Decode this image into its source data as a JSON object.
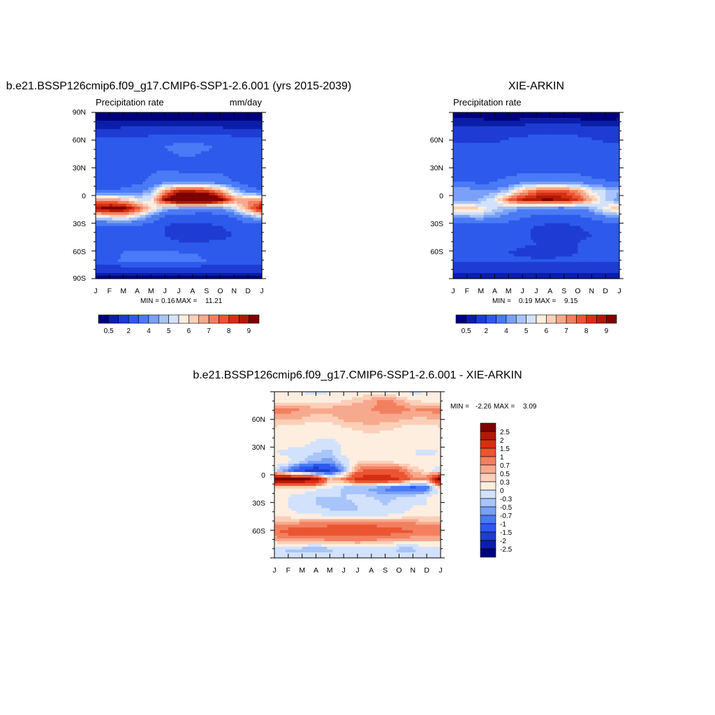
{
  "chart_data": [
    {
      "type": "heatmap",
      "title": "b.e21.BSSP126cmip6.f09_g17.CMIP6-SSP1-2.6.001 (yrs 2015-2039)",
      "left_label": "Precipitation rate",
      "right_label": "mm/day",
      "x_ticks": [
        "J",
        "F",
        "M",
        "A",
        "M",
        "J",
        "J",
        "A",
        "S",
        "O",
        "N",
        "D",
        "J"
      ],
      "y_ticks": [
        "90N",
        "60N",
        "30N",
        "0",
        "30S",
        "60S",
        "90S"
      ],
      "stats": {
        "min_label": "MIN =",
        "min": "0.16",
        "max_label": "MAX =",
        "max": "11.21"
      },
      "colorbar_labels": [
        "0.5",
        "2",
        "4",
        "5",
        "6",
        "7",
        "8",
        "9"
      ],
      "colors": [
        "#00007f",
        "#0a1ea8",
        "#1e3cd2",
        "#2d5aeb",
        "#4a7af5",
        "#7aa0f7",
        "#a8c4fa",
        "#d2e2fc",
        "#fdeee0",
        "#fccfb8",
        "#f7a98e",
        "#f2805f",
        "#eb5532",
        "#d62f14",
        "#b01a06",
        "#7f0000"
      ],
      "field": [
        [
          0.3,
          0.3,
          0.3,
          0.3,
          0.3,
          0.3,
          0.3,
          0.3,
          0.3,
          0.3,
          0.3,
          0.3,
          0.3
        ],
        [
          0.5,
          0.5,
          0.5,
          0.5,
          0.5,
          0.5,
          0.5,
          0.5,
          0.5,
          0.5,
          0.5,
          0.5,
          0.5
        ],
        [
          1.0,
          1.0,
          1.2,
          1.2,
          1.2,
          1.2,
          1.2,
          1.2,
          1.2,
          1.2,
          1.0,
          1.0,
          1.0
        ],
        [
          2.3,
          2.3,
          2.2,
          2.2,
          2.4,
          2.8,
          2.8,
          2.8,
          2.6,
          2.6,
          2.4,
          2.4,
          2.3
        ],
        [
          2.2,
          2.2,
          2.0,
          2.0,
          2.2,
          3.0,
          3.2,
          3.2,
          3.2,
          2.8,
          2.6,
          2.4,
          2.2
        ],
        [
          2.4,
          2.4,
          2.3,
          2.3,
          2.5,
          2.8,
          3.0,
          3.0,
          2.8,
          2.6,
          2.6,
          2.4,
          2.4
        ],
        [
          2.1,
          2.2,
          2.2,
          2.2,
          2.4,
          2.6,
          3.0,
          3.0,
          2.8,
          2.6,
          2.4,
          2.2,
          2.1
        ],
        [
          2.2,
          2.2,
          2.4,
          2.6,
          3.0,
          3.4,
          3.0,
          3.0,
          3.0,
          3.0,
          2.6,
          2.4,
          2.2
        ],
        [
          2.4,
          2.4,
          2.6,
          2.8,
          3.2,
          4.0,
          3.8,
          3.8,
          4.0,
          3.6,
          3.0,
          2.6,
          2.4
        ],
        [
          3.0,
          3.0,
          3.2,
          3.6,
          4.5,
          7.0,
          8.5,
          8.5,
          8.2,
          7.0,
          5.0,
          3.5,
          3.0
        ],
        [
          7.0,
          7.0,
          6.5,
          5.5,
          5.5,
          9.0,
          10.5,
          11.0,
          11.0,
          9.5,
          7.0,
          7.0,
          7.0
        ],
        [
          9.0,
          9.5,
          9.5,
          8.0,
          6.0,
          4.5,
          4.0,
          3.8,
          3.6,
          3.8,
          5.0,
          7.0,
          9.0
        ],
        [
          5.0,
          5.5,
          5.8,
          5.0,
          3.8,
          2.8,
          2.6,
          2.4,
          2.4,
          2.6,
          3.0,
          4.0,
          5.0
        ],
        [
          2.6,
          2.6,
          2.8,
          2.8,
          2.4,
          2.0,
          1.6,
          1.6,
          1.8,
          2.0,
          2.2,
          2.4,
          2.6
        ],
        [
          2.2,
          2.2,
          2.2,
          2.4,
          2.2,
          2.0,
          1.5,
          1.2,
          1.4,
          1.8,
          2.0,
          2.2,
          2.2
        ],
        [
          2.2,
          2.2,
          2.2,
          2.4,
          2.4,
          2.4,
          2.2,
          2.2,
          2.2,
          2.2,
          2.2,
          2.2,
          2.2
        ],
        [
          2.2,
          2.6,
          3.0,
          3.2,
          3.2,
          3.2,
          3.0,
          3.0,
          2.8,
          2.8,
          2.6,
          2.4,
          2.2
        ],
        [
          2.4,
          2.6,
          3.2,
          3.2,
          3.2,
          3.2,
          3.2,
          3.2,
          3.0,
          2.8,
          2.6,
          2.4,
          2.4
        ],
        [
          1.2,
          1.2,
          1.2,
          1.2,
          1.2,
          1.2,
          1.2,
          1.2,
          1.2,
          1.2,
          1.2,
          1.2,
          1.2
        ],
        [
          0.3,
          0.3,
          0.3,
          0.3,
          0.3,
          0.3,
          0.3,
          0.3,
          0.3,
          0.3,
          0.3,
          0.3,
          0.3
        ]
      ]
    },
    {
      "type": "heatmap",
      "title": "XIE-ARKIN",
      "left_label": "Precipitation rate",
      "right_label": "",
      "x_ticks": [
        "J",
        "F",
        "M",
        "A",
        "M",
        "J",
        "J",
        "A",
        "S",
        "O",
        "N",
        "D",
        "J"
      ],
      "y_ticks": [
        "60N",
        "30N",
        "0",
        "30S",
        "60S"
      ],
      "stats": {
        "min_label": "MIN =",
        "min": "0.19",
        "max_label": "MAX =",
        "max": "9.15"
      },
      "colorbar_labels": [
        "0.5",
        "2",
        "4",
        "5",
        "6",
        "7",
        "8",
        "9"
      ],
      "colors": [
        "#00007f",
        "#0a1ea8",
        "#1e3cd2",
        "#2d5aeb",
        "#4a7af5",
        "#7aa0f7",
        "#a8c4fa",
        "#d2e2fc",
        "#fdeee0",
        "#fccfb8",
        "#f7a98e",
        "#f2805f",
        "#eb5532",
        "#d62f14",
        "#b01a06",
        "#7f0000"
      ],
      "field": [
        [
          0.2,
          0.2,
          0.2,
          0.2,
          0.2,
          0.2,
          0.2,
          0.2,
          0.2,
          0.2,
          0.2,
          0.2,
          0.2
        ],
        [
          0.6,
          0.6,
          0.6,
          0.5,
          0.5,
          0.6,
          0.8,
          0.8,
          0.8,
          0.6,
          0.5,
          0.5,
          0.6
        ],
        [
          1.2,
          1.2,
          1.2,
          1.2,
          1.2,
          1.4,
          1.8,
          1.8,
          1.8,
          1.6,
          1.3,
          1.2,
          1.2
        ],
        [
          1.8,
          1.8,
          1.8,
          1.8,
          2.0,
          2.2,
          2.2,
          2.2,
          2.2,
          2.2,
          2.0,
          1.8,
          1.8
        ],
        [
          2.3,
          2.2,
          2.2,
          2.2,
          2.4,
          2.8,
          2.8,
          2.8,
          2.8,
          2.6,
          2.4,
          2.3,
          2.3
        ],
        [
          2.2,
          2.2,
          2.3,
          2.3,
          2.5,
          2.6,
          2.8,
          2.8,
          2.6,
          2.4,
          2.4,
          2.3,
          2.2
        ],
        [
          2.0,
          2.0,
          2.2,
          2.2,
          2.2,
          2.4,
          2.6,
          2.6,
          2.6,
          2.4,
          2.2,
          2.2,
          2.0
        ],
        [
          2.2,
          2.2,
          2.4,
          2.6,
          2.8,
          3.0,
          3.0,
          3.0,
          3.0,
          3.0,
          2.6,
          2.4,
          2.2
        ],
        [
          3.0,
          3.0,
          2.8,
          3.0,
          3.4,
          4.0,
          4.2,
          4.2,
          4.2,
          4.0,
          3.4,
          3.2,
          3.0
        ],
        [
          4.5,
          4.5,
          4.0,
          4.2,
          5.0,
          6.5,
          7.5,
          7.8,
          7.8,
          7.0,
          5.5,
          5.0,
          4.5
        ],
        [
          4.2,
          4.2,
          4.6,
          5.5,
          7.5,
          8.6,
          9.0,
          9.1,
          8.8,
          8.0,
          6.5,
          5.0,
          4.2
        ],
        [
          6.5,
          6.5,
          6.0,
          5.0,
          4.5,
          4.0,
          3.8,
          3.6,
          3.6,
          3.8,
          4.5,
          5.8,
          6.5
        ],
        [
          4.0,
          4.2,
          4.4,
          4.0,
          3.6,
          3.0,
          2.8,
          2.6,
          2.6,
          2.8,
          3.2,
          3.8,
          4.0
        ],
        [
          2.6,
          2.6,
          2.6,
          2.6,
          2.4,
          2.2,
          2.0,
          1.8,
          1.8,
          2.0,
          2.2,
          2.4,
          2.6
        ],
        [
          2.2,
          2.2,
          2.2,
          2.4,
          2.4,
          2.2,
          1.8,
          1.4,
          1.5,
          1.8,
          2.0,
          2.2,
          2.2
        ],
        [
          2.2,
          2.2,
          2.2,
          2.4,
          2.4,
          2.2,
          2.0,
          2.0,
          2.0,
          2.0,
          2.2,
          2.2,
          2.2
        ],
        [
          2.2,
          2.2,
          2.2,
          2.2,
          2.0,
          1.8,
          1.6,
          1.6,
          1.8,
          2.0,
          2.2,
          2.2,
          2.2
        ],
        [
          2.2,
          2.2,
          2.2,
          2.2,
          2.2,
          2.2,
          2.2,
          2.2,
          2.2,
          2.2,
          2.2,
          2.2,
          2.2
        ],
        [
          1.2,
          1.2,
          1.2,
          1.2,
          1.2,
          1.2,
          1.2,
          1.2,
          1.2,
          1.2,
          1.2,
          1.2,
          1.2
        ],
        [
          0.5,
          0.5,
          0.5,
          0.5,
          0.5,
          0.5,
          0.5,
          0.5,
          0.5,
          0.5,
          0.5,
          0.5,
          0.5
        ]
      ]
    },
    {
      "type": "heatmap",
      "title": "b.e21.BSSP126cmip6.f09_g17.CMIP6-SSP1-2.6.001 - XIE-ARKIN",
      "left_label": "",
      "right_label": "",
      "x_ticks": [
        "J",
        "F",
        "M",
        "A",
        "M",
        "J",
        "J",
        "A",
        "S",
        "O",
        "N",
        "D",
        "J"
      ],
      "y_ticks": [
        "60N",
        "30N",
        "0",
        "30S",
        "60S"
      ],
      "stats": {
        "min_label": "MIN =",
        "min": "-2.26",
        "max_label": "MAX =",
        "max": "3.09"
      },
      "colorbar_labels": [
        "2.5",
        "2",
        "1.5",
        "1",
        "0.7",
        "0.5",
        "0.3",
        "0",
        "-0.3",
        "-0.5",
        "-0.7",
        "-1",
        "-1.5",
        "-2",
        "-2.5"
      ],
      "colors": [
        "#7f0000",
        "#b01a06",
        "#d62f14",
        "#eb5532",
        "#f2805f",
        "#f7a98e",
        "#fccfb8",
        "#fdeee0",
        "#d2e2fc",
        "#a8c4fa",
        "#7aa0f7",
        "#4a7af5",
        "#2d5aeb",
        "#1e3cd2",
        "#0a1ea8",
        "#00007f"
      ],
      "field": [
        [
          0.1,
          0.1,
          0.0,
          -0.1,
          0.0,
          0.0,
          0.1,
          0.2,
          0.1,
          0.0,
          -0.1,
          0.0,
          0.1
        ],
        [
          0.2,
          0.2,
          0.1,
          0.1,
          0.1,
          0.3,
          0.4,
          0.6,
          0.8,
          0.6,
          0.3,
          0.2,
          0.2
        ],
        [
          0.8,
          0.8,
          0.7,
          0.6,
          0.6,
          0.7,
          0.7,
          0.7,
          0.8,
          0.8,
          0.7,
          0.8,
          0.8
        ],
        [
          0.6,
          0.6,
          0.5,
          0.4,
          0.4,
          0.6,
          0.6,
          0.6,
          0.6,
          0.6,
          0.5,
          0.5,
          0.6
        ],
        [
          0.3,
          0.2,
          0.2,
          0.2,
          0.2,
          0.3,
          0.4,
          0.5,
          0.4,
          0.3,
          0.2,
          0.2,
          0.3
        ],
        [
          0.2,
          0.1,
          0.1,
          0.1,
          0.1,
          0.1,
          0.2,
          0.2,
          0.2,
          0.2,
          0.1,
          0.1,
          0.2
        ],
        [
          0.1,
          0.1,
          0.1,
          -0.1,
          -0.2,
          0.1,
          0.2,
          0.2,
          0.2,
          0.1,
          0.1,
          0.1,
          0.1
        ],
        [
          0.0,
          -0.1,
          -0.2,
          -0.3,
          -0.4,
          0.1,
          0.1,
          0.2,
          0.2,
          0.0,
          0.0,
          -0.1,
          0.0
        ],
        [
          0.3,
          0.1,
          -0.3,
          -0.5,
          -0.6,
          -0.2,
          0.3,
          0.3,
          0.3,
          0.2,
          0.1,
          0.2,
          0.3
        ],
        [
          -0.3,
          -0.8,
          -1.5,
          -2.0,
          -1.6,
          -0.5,
          0.8,
          1.2,
          1.2,
          1.0,
          0.5,
          0.2,
          -0.3
        ],
        [
          2.8,
          2.8,
          2.8,
          2.5,
          0.5,
          0.8,
          1.8,
          1.8,
          1.8,
          1.5,
          0.8,
          0.8,
          2.8
        ],
        [
          0.3,
          0.3,
          0.3,
          0.1,
          0.0,
          -0.4,
          -0.5,
          -0.6,
          -0.8,
          -1.0,
          -1.2,
          -1.0,
          0.3
        ],
        [
          0.1,
          0.0,
          -0.2,
          -0.3,
          -0.3,
          -0.3,
          -0.2,
          -0.3,
          -0.4,
          -0.3,
          -0.2,
          0.0,
          0.1
        ],
        [
          0.1,
          0.0,
          -0.2,
          -0.3,
          -0.4,
          -0.4,
          -0.3,
          -0.2,
          -0.3,
          -0.2,
          0.0,
          0.0,
          0.1
        ],
        [
          0.1,
          0.1,
          0.0,
          0.0,
          -0.2,
          -0.2,
          -0.3,
          -0.2,
          -0.1,
          0.0,
          0.1,
          0.1,
          0.1
        ],
        [
          0.6,
          0.6,
          0.7,
          0.7,
          0.8,
          0.9,
          0.9,
          0.9,
          0.8,
          0.7,
          0.7,
          0.6,
          0.6
        ],
        [
          0.9,
          1.2,
          1.4,
          1.4,
          1.4,
          1.4,
          1.3,
          1.3,
          1.2,
          1.2,
          1.0,
          0.9,
          0.9
        ],
        [
          0.5,
          0.6,
          0.6,
          0.6,
          0.7,
          0.7,
          0.8,
          0.7,
          0.6,
          0.5,
          0.5,
          0.5,
          0.5
        ],
        [
          -0.3,
          -0.4,
          -0.4,
          -0.5,
          -0.4,
          -0.3,
          -0.3,
          -0.3,
          -0.3,
          -0.4,
          -0.4,
          -0.3,
          -0.3
        ],
        [
          0.0,
          0.0,
          -0.1,
          -0.1,
          0.0,
          0.0,
          0.0,
          0.0,
          0.0,
          0.0,
          0.0,
          0.0,
          0.0
        ]
      ]
    }
  ]
}
